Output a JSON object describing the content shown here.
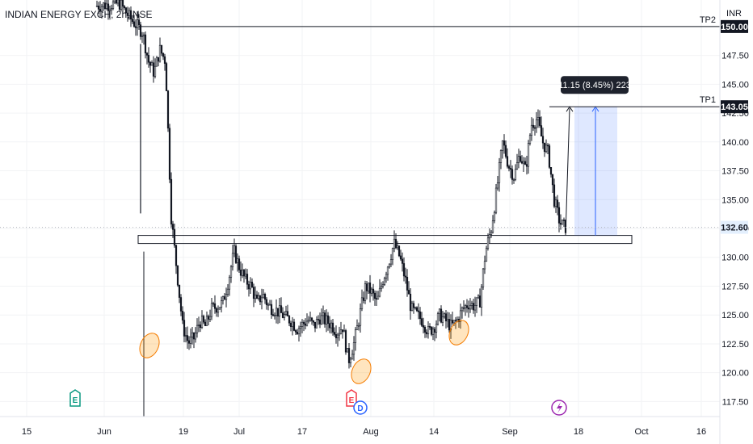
{
  "header": {
    "title": "INDIAN ENERGY EXCH, 2h, NSE",
    "currency": "INR"
  },
  "chart_data": {
    "type": "candlestick",
    "title": "INDIAN ENERGY EXCH, 2h, NSE",
    "y_range": [
      116.2,
      152.3
    ],
    "y_ticks": [
      117.5,
      120.0,
      122.5,
      125.0,
      127.5,
      130.0,
      132.5,
      135.0,
      137.5,
      140.0,
      142.5,
      145.0,
      147.5
    ],
    "y_tick_labels": [
      "117.50",
      "120.00",
      "122.50",
      "125.00",
      "127.50",
      "130.00",
      "132.50",
      "135.00",
      "137.50",
      "140.00",
      "142.50",
      "145.00",
      "147.50"
    ],
    "x_tick_labels": [
      "15",
      "Jun",
      "19",
      "Jul",
      "17",
      "Aug",
      "14",
      "Sep",
      "18",
      "Oct",
      "16"
    ],
    "price_path": [
      [
        0,
        151.8
      ],
      [
        4,
        152.0
      ],
      [
        6,
        150.6
      ],
      [
        8,
        149.5
      ],
      [
        9,
        147.0
      ],
      [
        10,
        146.0
      ],
      [
        11,
        148.0
      ],
      [
        12,
        147.0
      ],
      [
        13,
        133.5
      ],
      [
        15,
        124.0
      ],
      [
        16,
        122.6
      ],
      [
        17,
        123.0
      ],
      [
        18,
        124.5
      ],
      [
        19,
        124.0
      ],
      [
        20,
        125.5
      ],
      [
        22,
        126.0
      ],
      [
        23,
        128.0
      ],
      [
        24,
        130.5
      ],
      [
        25,
        129.0
      ],
      [
        26,
        128.0
      ],
      [
        27,
        127.5
      ],
      [
        28,
        126.0
      ],
      [
        29,
        126.8
      ],
      [
        30,
        125.8
      ],
      [
        31,
        125.5
      ],
      [
        32,
        125.2
      ],
      [
        33,
        124.8
      ],
      [
        34,
        124.5
      ],
      [
        35,
        123.8
      ],
      [
        36,
        124.2
      ],
      [
        37,
        124.6
      ],
      [
        38,
        124.0
      ],
      [
        39,
        124.8
      ],
      [
        40,
        124.5
      ],
      [
        41,
        124.2
      ],
      [
        42,
        123.5
      ],
      [
        43,
        124.0
      ],
      [
        44,
        121.0
      ],
      [
        45,
        122.6
      ],
      [
        46,
        125.0
      ],
      [
        47,
        127.5
      ],
      [
        48,
        127.0
      ],
      [
        49,
        126.0
      ],
      [
        50,
        128.0
      ],
      [
        51,
        129.5
      ],
      [
        52,
        131.2
      ],
      [
        53,
        130.0
      ],
      [
        54,
        128.0
      ],
      [
        55,
        125.5
      ],
      [
        56,
        125.0
      ],
      [
        57,
        124.5
      ],
      [
        58,
        123.5
      ],
      [
        59,
        124.0
      ],
      [
        60,
        125.0
      ],
      [
        61,
        124.5
      ],
      [
        62,
        124.0
      ],
      [
        63,
        124.5
      ],
      [
        64,
        125.5
      ],
      [
        65,
        126.0
      ],
      [
        66,
        125.8
      ],
      [
        67,
        126.2
      ],
      [
        68,
        130.5
      ],
      [
        69,
        132.5
      ],
      [
        70,
        136.0
      ],
      [
        71,
        140.0
      ],
      [
        72,
        138.0
      ],
      [
        73,
        137.0
      ],
      [
        74,
        139.0
      ],
      [
        75,
        137.5
      ],
      [
        76,
        141.5
      ],
      [
        77,
        142.0
      ],
      [
        78,
        140.0
      ],
      [
        79,
        139.0
      ],
      [
        80,
        135.0
      ],
      [
        81,
        133.0
      ],
      [
        82,
        132.6
      ]
    ],
    "support_zone": [
      131.2,
      131.9
    ],
    "levels": [
      {
        "label": "TP2",
        "value": 150.0,
        "value_label": "150.00"
      },
      {
        "label": "TP1",
        "value": 143.05,
        "value_label": "143.05"
      }
    ],
    "current_price": {
      "value": 132.6,
      "label": "132.60"
    },
    "measure": {
      "from": 131.9,
      "to": 143.05,
      "label": "11.15 (8.45%) 223"
    },
    "circled_lows": [
      "late May",
      "late July",
      "mid August"
    ],
    "events": [
      "E",
      "E",
      "D",
      "lightning"
    ]
  }
}
